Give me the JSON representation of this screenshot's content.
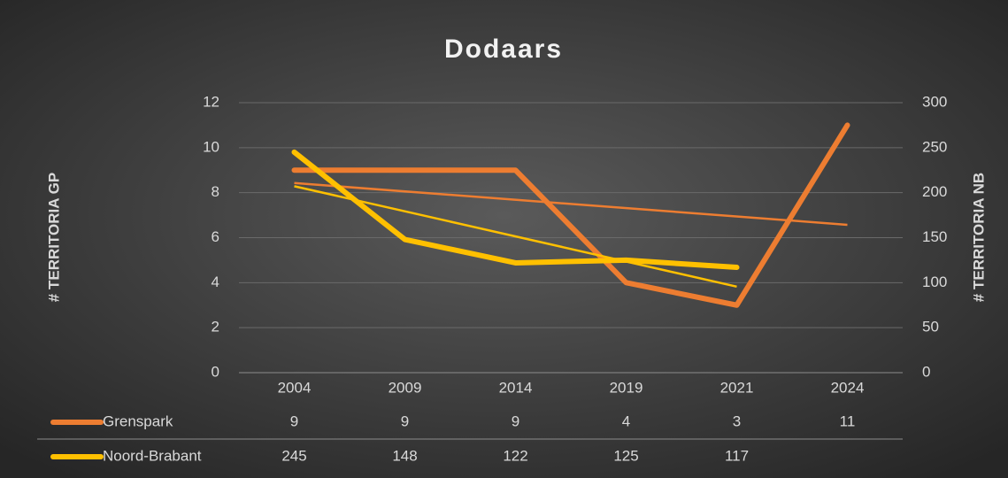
{
  "chart_data": {
    "type": "line",
    "title": "Dodaars",
    "categories": [
      "2004",
      "2009",
      "2014",
      "2019",
      "2021",
      "2024"
    ],
    "ylabel": "# TERRITORIA GP",
    "y2label": "# TERRITORIA NB",
    "ylim": [
      0,
      12
    ],
    "yticks": [
      0,
      2,
      4,
      6,
      8,
      10,
      12
    ],
    "y2lim": [
      0,
      300
    ],
    "y2ticks": [
      0,
      50,
      100,
      150,
      200,
      250,
      300
    ],
    "grid": true,
    "trendline": "linear",
    "data_table": true,
    "series": [
      {
        "name": "Grenspark",
        "color": "#ed7d31",
        "values": [
          9,
          9,
          9,
          4,
          3,
          11
        ]
      },
      {
        "name": "Noord-Brabant",
        "color": "#ffc000",
        "axis": "y2",
        "values": [
          245,
          148,
          122,
          125,
          117,
          null
        ]
      }
    ]
  }
}
